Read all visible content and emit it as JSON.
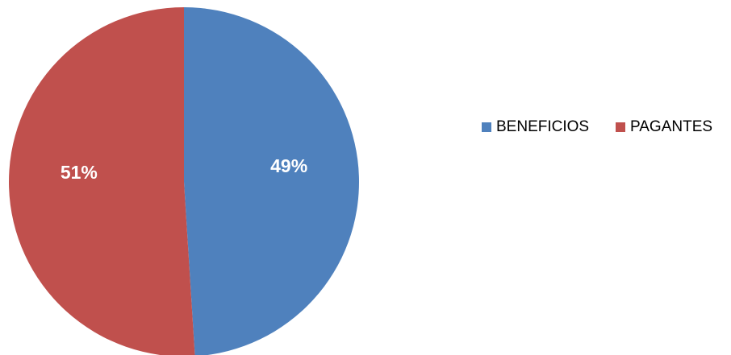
{
  "chart_data": {
    "type": "pie",
    "title": "",
    "categories": [
      "BENEFICIOS",
      "PAGANTES"
    ],
    "values": [
      49,
      51
    ],
    "data_labels": [
      "49%",
      "51%"
    ],
    "colors": [
      "#4f81bd",
      "#c0504d"
    ],
    "start_angle_deg": 0,
    "direction": "clockwise",
    "legend": {
      "position": "right",
      "entries": [
        "BENEFICIOS",
        "PAGANTES"
      ]
    }
  }
}
